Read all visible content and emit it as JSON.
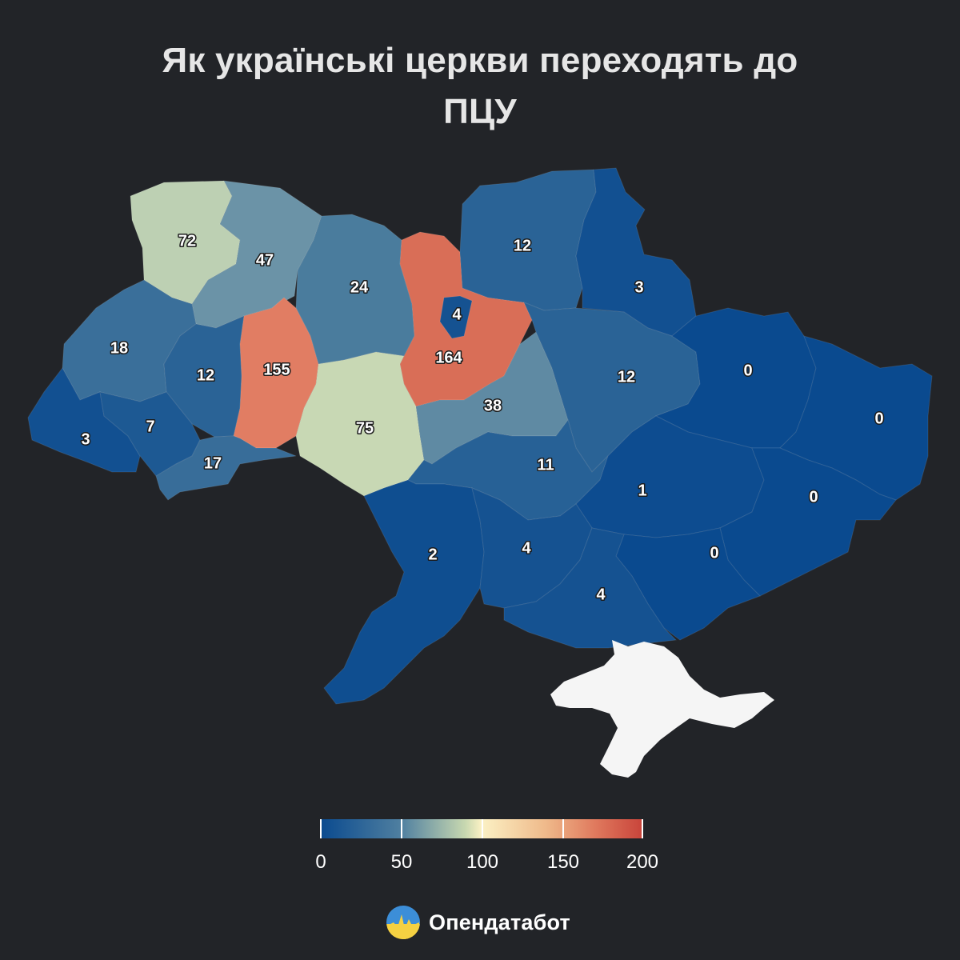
{
  "title": {
    "line1": "Як українські церкви переходять до",
    "line2": "ПЦУ"
  },
  "colors": {
    "background": "#222428",
    "crimea": "#f5f5f5",
    "scale_low": "#0a4a8f",
    "scale_mid": "#fbf1c4",
    "scale_high": "#c8433a"
  },
  "legend": {
    "min": 0,
    "max": 200,
    "ticks": [
      {
        "value": 0,
        "label": "0"
      },
      {
        "value": 50,
        "label": "50"
      },
      {
        "value": 100,
        "label": "100"
      },
      {
        "value": 150,
        "label": "150"
      },
      {
        "value": 200,
        "label": "200"
      }
    ]
  },
  "regions": [
    {
      "id": "volyn",
      "value": 72,
      "label": "72"
    },
    {
      "id": "rivne",
      "value": 47,
      "label": "47"
    },
    {
      "id": "zhytomyr",
      "value": 24,
      "label": "24"
    },
    {
      "id": "kyiv-oblast",
      "value": 164,
      "label": "164"
    },
    {
      "id": "kyiv-city",
      "value": 4,
      "label": "4"
    },
    {
      "id": "chernihiv",
      "value": 12,
      "label": "12"
    },
    {
      "id": "sumy",
      "value": 3,
      "label": "3"
    },
    {
      "id": "lviv",
      "value": 18,
      "label": "18"
    },
    {
      "id": "ternopil",
      "value": 12,
      "label": "12"
    },
    {
      "id": "khmelnytskyi",
      "value": 155,
      "label": "155"
    },
    {
      "id": "vinnytsia",
      "value": 75,
      "label": "75"
    },
    {
      "id": "cherkasy",
      "value": 38,
      "label": "38"
    },
    {
      "id": "poltava",
      "value": 12,
      "label": "12"
    },
    {
      "id": "kharkiv",
      "value": 0,
      "label": "0"
    },
    {
      "id": "luhansk",
      "value": 0,
      "label": "0"
    },
    {
      "id": "zakarpattia",
      "value": 3,
      "label": "3"
    },
    {
      "id": "ivano-frankivsk",
      "value": 7,
      "label": "7"
    },
    {
      "id": "chernivtsi",
      "value": 17,
      "label": "17"
    },
    {
      "id": "kirovohrad",
      "value": 11,
      "label": "11"
    },
    {
      "id": "dnipropetrovsk",
      "value": 1,
      "label": "1"
    },
    {
      "id": "donetsk",
      "value": 0,
      "label": "0"
    },
    {
      "id": "zaporizhzhia",
      "value": 0,
      "label": "0"
    },
    {
      "id": "odesa",
      "value": 2,
      "label": "2"
    },
    {
      "id": "mykolaiv",
      "value": 4,
      "label": "4"
    },
    {
      "id": "kherson",
      "value": 4,
      "label": "4"
    }
  ],
  "brand": {
    "name": "Опендатабот"
  }
}
